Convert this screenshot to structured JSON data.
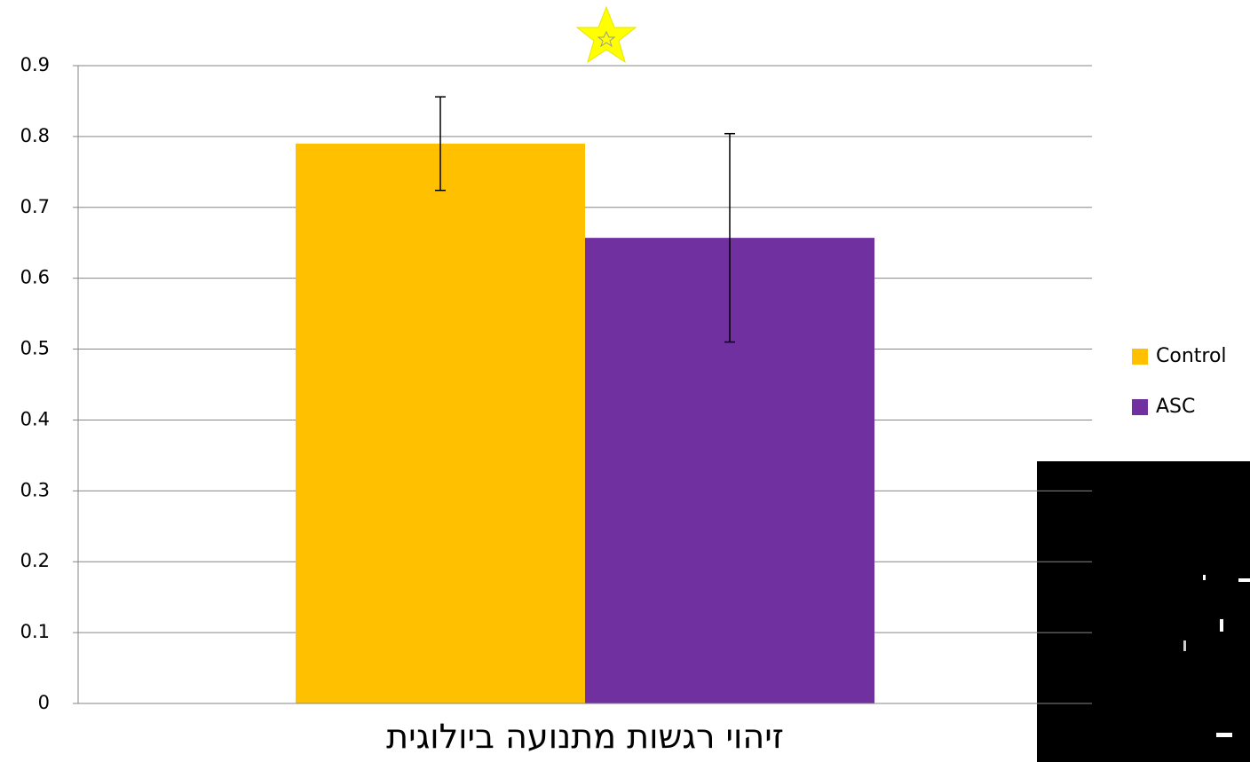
{
  "chart_data": {
    "type": "bar",
    "categories": [
      "זיהוי רגשות מתנועה ביולוגית"
    ],
    "series": [
      {
        "name": "Control",
        "color": "#FFC000",
        "values": [
          0.79
        ],
        "errors": [
          0.066
        ]
      },
      {
        "name": "ASC",
        "color": "#7030A0",
        "values": [
          0.657
        ],
        "errors": [
          0.147
        ]
      }
    ],
    "ylim": [
      0,
      0.9
    ],
    "yticks": [
      0,
      0.1,
      0.2,
      0.3,
      0.4,
      0.5,
      0.6,
      0.7,
      0.8,
      0.9
    ],
    "grid": true,
    "legend": "right"
  }
}
